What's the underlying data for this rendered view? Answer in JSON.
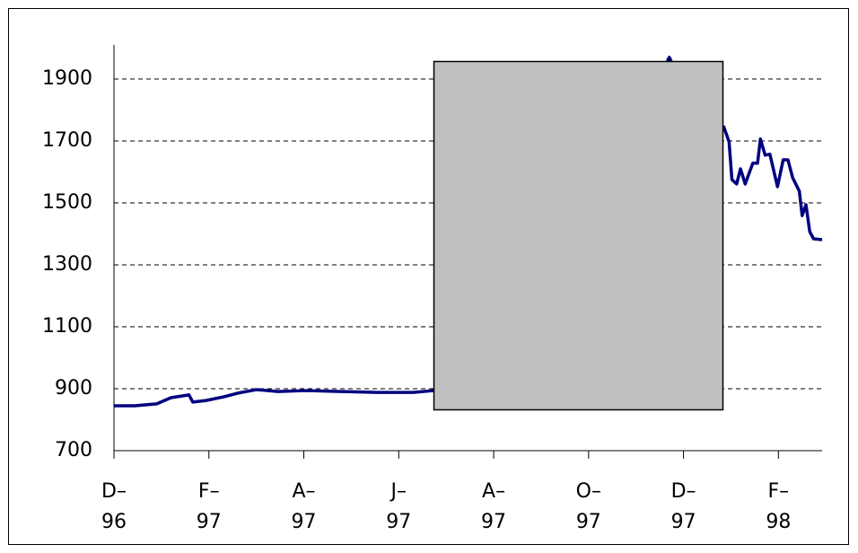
{
  "chart_data": {
    "type": "line",
    "x": [
      0,
      0.22,
      0.45,
      0.6,
      0.79,
      0.83,
      0.97,
      1.16,
      1.31,
      1.5,
      1.73,
      2.02,
      2.39,
      2.77,
      3.15,
      3.37,
      null,
      5.83,
      5.85,
      5.87,
      null,
      6.42,
      6.48,
      6.51,
      6.56,
      6.6,
      6.65,
      6.73,
      6.78,
      6.81,
      6.86,
      6.91,
      6.99,
      7.05,
      7.1,
      7.15,
      7.22,
      7.25,
      7.29,
      7.33,
      7.37,
      7.46
    ],
    "series": [
      {
        "color": "#000080",
        "values": [
          845,
          845,
          851,
          871,
          880,
          857,
          862,
          874,
          886,
          897,
          891,
          894,
          891,
          888,
          888,
          894,
          null,
          1958,
          1970,
          1958,
          null,
          1749,
          1697,
          1575,
          1561,
          1610,
          1561,
          1628,
          1628,
          1706,
          1654,
          1657,
          1552,
          1639,
          1639,
          1581,
          1538,
          1459,
          1494,
          1407,
          1384,
          1381
        ]
      }
    ],
    "xlim": [
      0,
      7.46
    ],
    "xticks": [
      {
        "value": 0,
        "label": [
          "D–",
          "96"
        ]
      },
      {
        "value": 1,
        "label": [
          "F–",
          "97"
        ]
      },
      {
        "value": 2,
        "label": [
          "A–",
          "97"
        ]
      },
      {
        "value": 3,
        "label": [
          "J–",
          "97"
        ]
      },
      {
        "value": 4,
        "label": [
          "A–",
          "97"
        ]
      },
      {
        "value": 5,
        "label": [
          "O–",
          "97"
        ]
      },
      {
        "value": 6,
        "label": [
          "D–",
          "97"
        ]
      },
      {
        "value": 7,
        "label": [
          "F–",
          "98"
        ]
      }
    ],
    "ylim": [
      700,
      2010
    ],
    "yticks": [
      700,
      900,
      1100,
      1300,
      1500,
      1700,
      1900
    ],
    "grid": true
  }
}
